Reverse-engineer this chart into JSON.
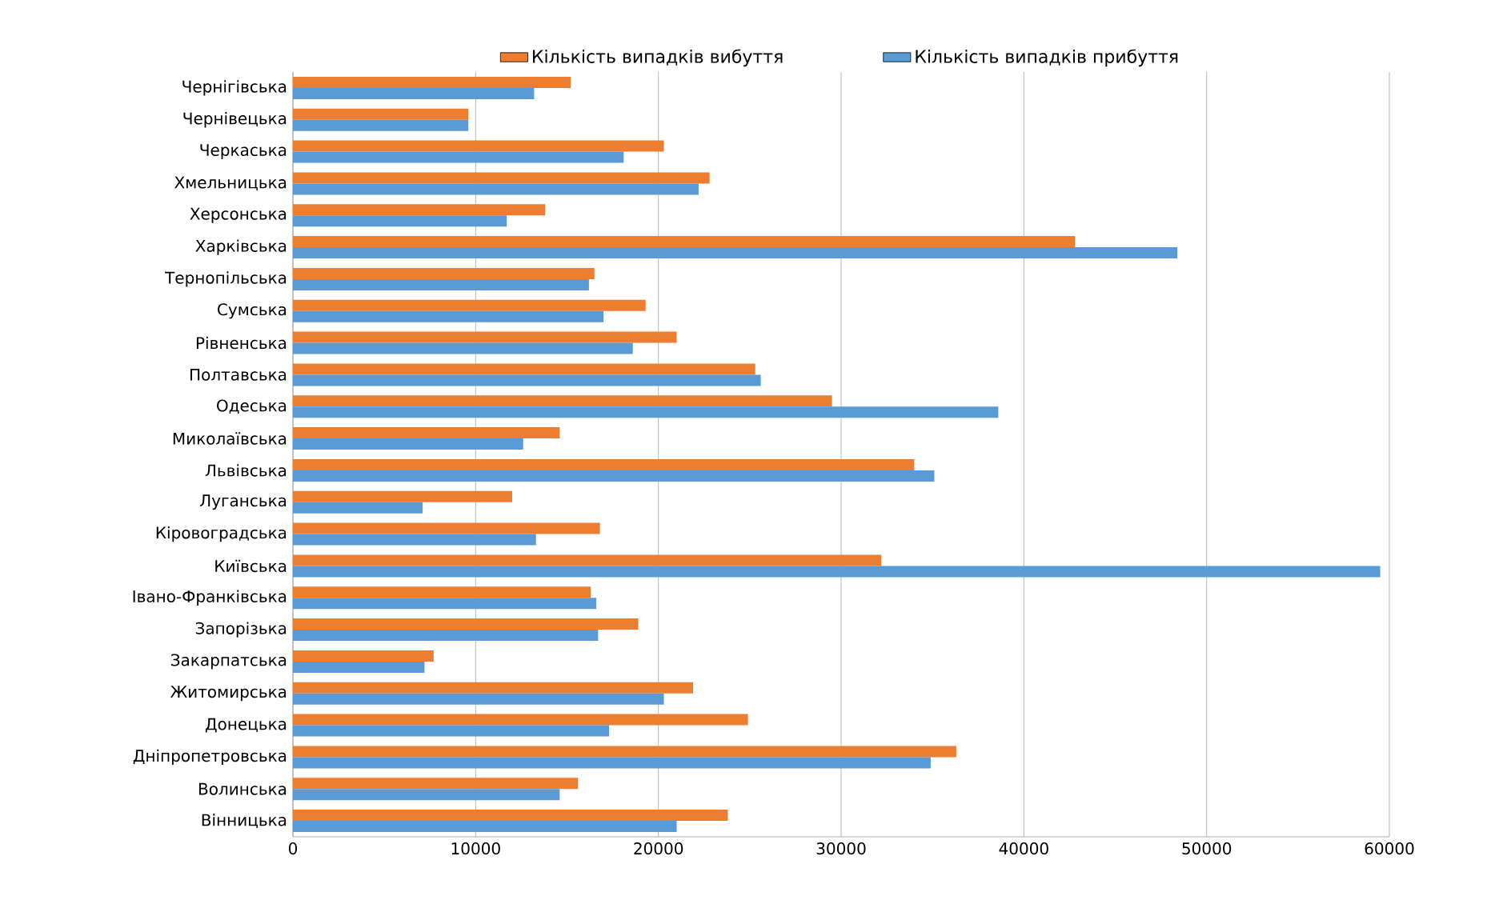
{
  "chart_data": {
    "type": "bar",
    "orientation": "horizontal",
    "categories": [
      "Чернігівська",
      "Чернівецька",
      "Черкаська",
      "Хмельницька",
      "Херсонська",
      "Харківська",
      "Тернопільська",
      "Сумська",
      "Рівненська",
      "Полтавська",
      "Одеська",
      "Миколаївська",
      "Львівська",
      "Луганська",
      "Кіровоградська",
      "Київська",
      "Івано-Франківська",
      "Запорізька",
      "Закарпатська",
      "Житомирська",
      "Донецька",
      "Дніпропетровська",
      "Волинська",
      "Вінницька"
    ],
    "series": [
      {
        "name": "Кількість випадків вибуття",
        "color": "#ed7d31",
        "values": [
          15200,
          9600,
          20300,
          22800,
          13800,
          42800,
          16500,
          19300,
          21000,
          25300,
          29500,
          14600,
          34000,
          12000,
          16800,
          32200,
          16300,
          18900,
          7700,
          21900,
          24900,
          36300,
          15600,
          23800
        ]
      },
      {
        "name": "Кількість випадків прибуття",
        "color": "#5b9bd5",
        "values": [
          13200,
          9600,
          18100,
          22200,
          11700,
          48400,
          16200,
          17000,
          18600,
          25600,
          38600,
          12600,
          35100,
          7100,
          13300,
          59500,
          16600,
          16700,
          7200,
          20300,
          17300,
          34900,
          14600,
          21000
        ]
      }
    ],
    "xlim": [
      0,
      60000
    ],
    "xticks": [
      0,
      10000,
      20000,
      30000,
      40000,
      50000,
      60000
    ],
    "grid": "x",
    "legend": "top"
  }
}
